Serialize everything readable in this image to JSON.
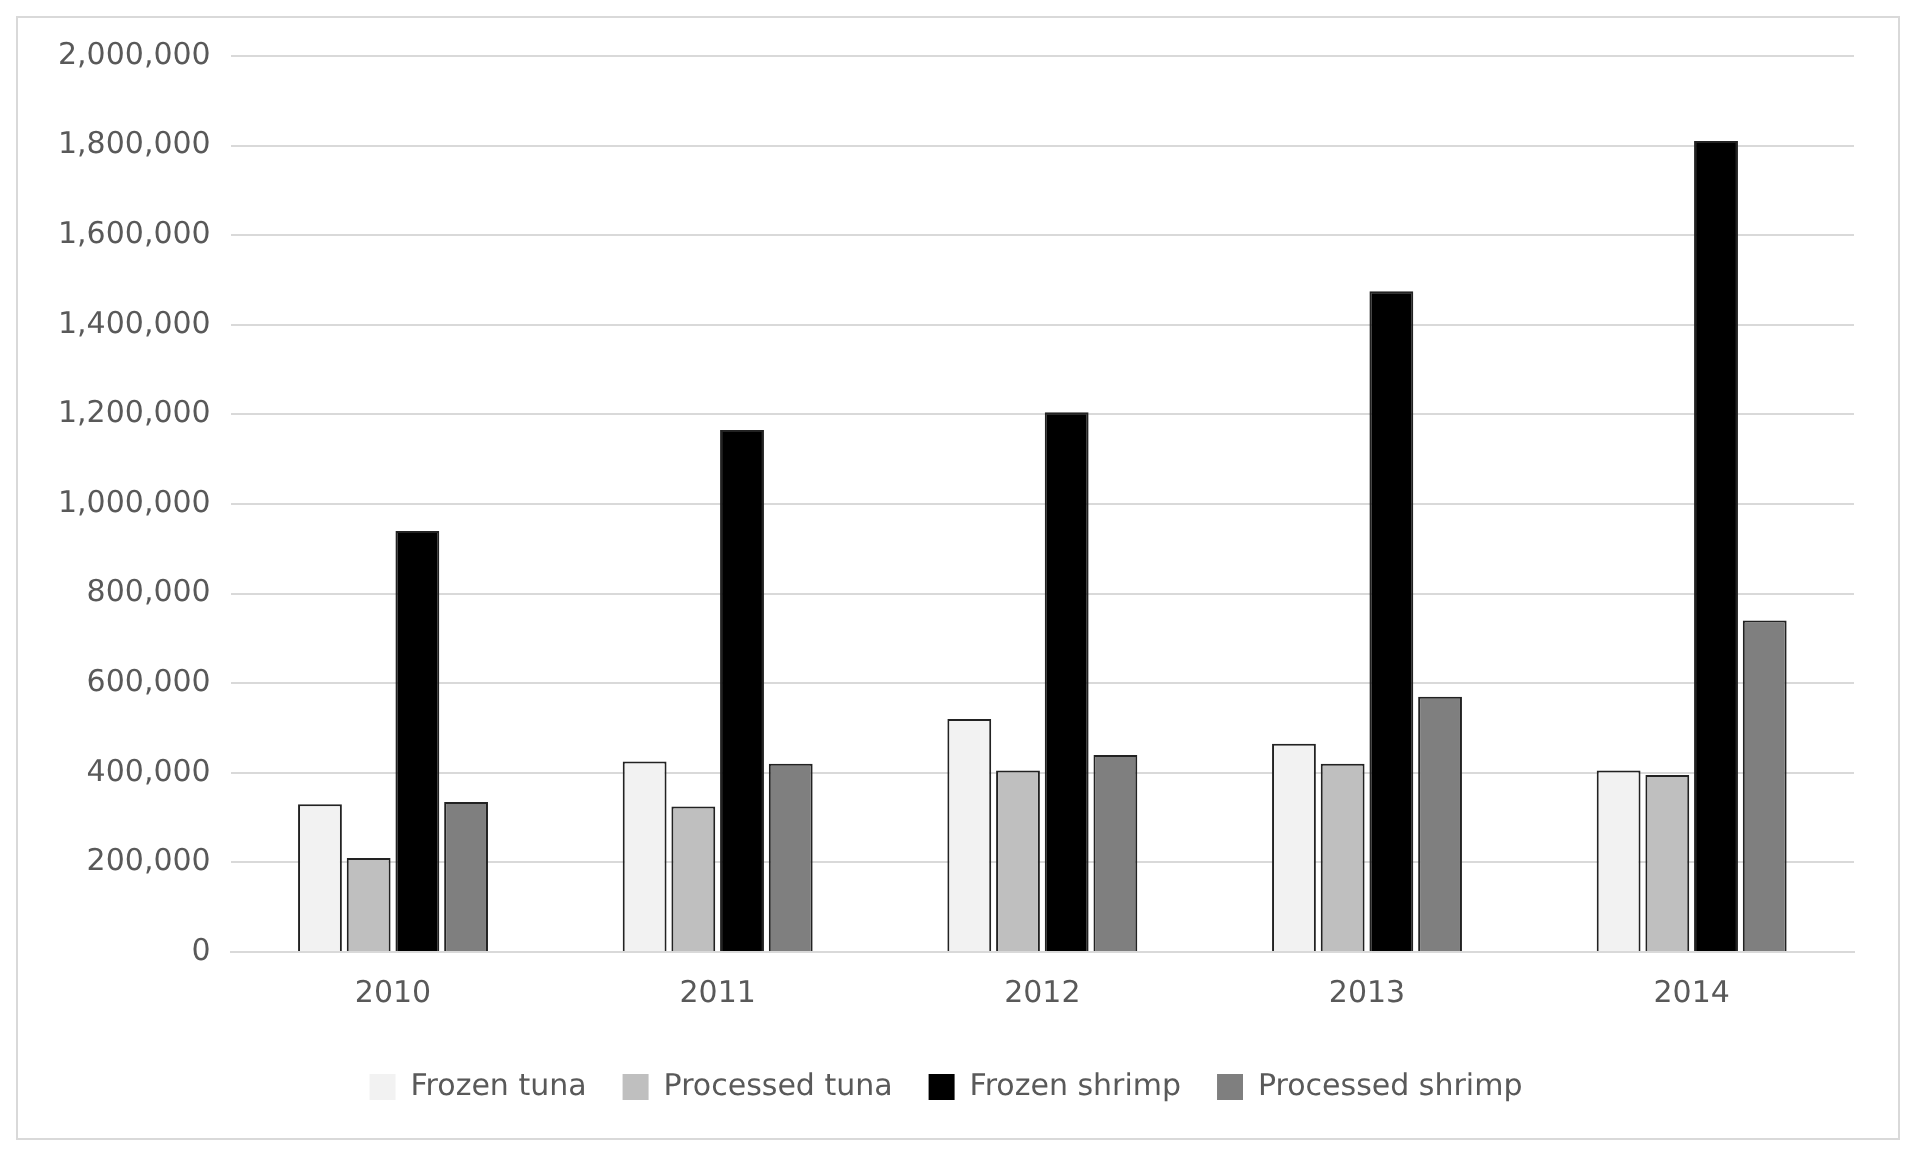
{
  "chart_data": {
    "type": "bar",
    "categories": [
      "2010",
      "2011",
      "2012",
      "2013",
      "2014"
    ],
    "series": [
      {
        "name": "Frozen tuna",
        "color": "#f2f2f2",
        "values": [
          330000,
          425000,
          520000,
          465000,
          405000
        ]
      },
      {
        "name": "Processed tuna",
        "color": "#bfbfbf",
        "values": [
          210000,
          325000,
          405000,
          420000,
          395000
        ]
      },
      {
        "name": "Frozen shrimp",
        "color": "#000000",
        "values": [
          940000,
          1165000,
          1205000,
          1475000,
          1810000
        ]
      },
      {
        "name": "Processed shrimp",
        "color": "#7f7f7f",
        "values": [
          335000,
          420000,
          440000,
          570000,
          740000
        ]
      }
    ],
    "ylim": [
      0,
      2000000
    ],
    "yticks": [
      {
        "value": 0,
        "label": "0"
      },
      {
        "value": 200000,
        "label": "200,000"
      },
      {
        "value": 400000,
        "label": "400,000"
      },
      {
        "value": 600000,
        "label": "600,000"
      },
      {
        "value": 800000,
        "label": "800,000"
      },
      {
        "value": 1000000,
        "label": "1,000,000"
      },
      {
        "value": 1200000,
        "label": "1,200,000"
      },
      {
        "value": 1400000,
        "label": "1,400,000"
      },
      {
        "value": 1600000,
        "label": "1,600,000"
      },
      {
        "value": 1800000,
        "label": "1,800,000"
      },
      {
        "value": 2000000,
        "label": "2,000,000"
      }
    ],
    "grid": "y",
    "legend": "bottom"
  }
}
